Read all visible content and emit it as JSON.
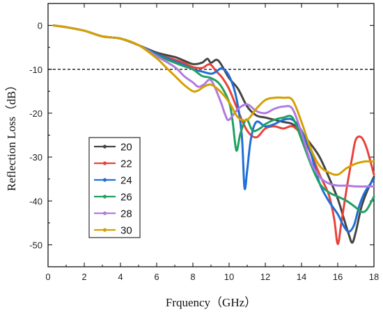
{
  "chart_data": {
    "type": "line",
    "xlabel": "Frquency（GHz）",
    "ylabel": "Reflection Loss（dB）",
    "xlim": [
      0,
      18
    ],
    "ylim": [
      -55,
      5
    ],
    "xticks": [
      "0",
      "2",
      "4",
      "6",
      "8",
      "10",
      "12",
      "14",
      "16",
      "18"
    ],
    "yticks": [
      "0",
      "-10",
      "-20",
      "-30",
      "-40",
      "-50"
    ],
    "reference_line": {
      "y": -10,
      "style": "dashed",
      "color": "#000000"
    },
    "grid": false,
    "legend_position": "left-middle",
    "series": [
      {
        "name": "20",
        "color": "#444444",
        "marker": "square",
        "x": [
          0.3,
          1.0,
          2.0,
          3.0,
          4.0,
          5.0,
          6.0,
          7.0,
          7.5,
          8.0,
          8.5,
          8.8,
          9.0,
          9.4,
          10.0,
          10.5,
          11.0,
          11.5,
          12.0,
          12.5,
          13.0,
          13.5,
          14.0,
          14.5,
          15.0,
          15.5,
          16.0,
          16.3,
          16.6,
          16.8,
          17.0,
          17.3,
          17.6,
          18.0
        ],
        "y": [
          0,
          -0.4,
          -1.2,
          -2.5,
          -3.0,
          -4.5,
          -6.2,
          -7.2,
          -8.0,
          -8.8,
          -8.5,
          -7.6,
          -8.5,
          -8.0,
          -12.0,
          -14.5,
          -18.5,
          -20.5,
          -21.0,
          -21.5,
          -22.0,
          -22.5,
          -24.5,
          -27.0,
          -30.0,
          -34.5,
          -39.5,
          -43.5,
          -47.5,
          -49.5,
          -47.0,
          -41.5,
          -38.0,
          -34.5
        ]
      },
      {
        "name": "22",
        "color": "#e8423b",
        "marker": "circle",
        "x": [
          0.3,
          1.0,
          2.0,
          3.0,
          4.0,
          5.0,
          6.0,
          7.0,
          7.5,
          8.0,
          8.5,
          8.8,
          9.0,
          9.3,
          9.6,
          10.0,
          10.5,
          11.0,
          11.5,
          12.0,
          12.5,
          13.0,
          13.5,
          14.0,
          14.5,
          15.0,
          15.5,
          15.8,
          16.0,
          16.2,
          16.5,
          16.8,
          17.0,
          17.3,
          17.6,
          18.0
        ],
        "y": [
          0,
          -0.4,
          -1.2,
          -2.5,
          -3.0,
          -4.5,
          -6.5,
          -7.8,
          -8.5,
          -9.5,
          -9.7,
          -9.0,
          -9.0,
          -10.5,
          -11.8,
          -14.5,
          -19.5,
          -24.0,
          -25.5,
          -23.5,
          -23.0,
          -23.5,
          -23.0,
          -25.0,
          -29.0,
          -34.0,
          -38.5,
          -44.0,
          -49.8,
          -45.0,
          -37.0,
          -30.0,
          -26.0,
          -25.5,
          -28.0,
          -34.0
        ]
      },
      {
        "name": "24",
        "color": "#1f6fd6",
        "marker": "triangle-up",
        "x": [
          0.3,
          1.0,
          2.0,
          3.0,
          4.0,
          5.0,
          6.0,
          7.0,
          7.5,
          8.0,
          8.5,
          9.0,
          9.3,
          9.6,
          10.0,
          10.4,
          10.7,
          10.85,
          11.0,
          11.2,
          11.5,
          12.0,
          12.5,
          13.0,
          13.5,
          14.0,
          14.5,
          15.0,
          15.5,
          16.0,
          16.3,
          16.6,
          16.9,
          17.2,
          17.5,
          18.0
        ],
        "y": [
          0,
          -0.4,
          -1.2,
          -2.5,
          -3.0,
          -4.5,
          -6.5,
          -8.2,
          -9.0,
          -10.0,
          -10.5,
          -11.0,
          -10.5,
          -9.8,
          -11.5,
          -16.5,
          -25.0,
          -37.0,
          -33.0,
          -26.0,
          -22.0,
          -23.0,
          -22.5,
          -21.5,
          -21.5,
          -24.0,
          -29.0,
          -36.0,
          -40.0,
          -43.0,
          -45.5,
          -47.0,
          -45.5,
          -41.0,
          -38.0,
          -35.0
        ]
      },
      {
        "name": "26",
        "color": "#20a060",
        "marker": "triangle-down",
        "x": [
          0.3,
          1.0,
          2.0,
          3.0,
          4.0,
          5.0,
          6.0,
          7.0,
          7.5,
          8.0,
          8.5,
          9.0,
          9.5,
          10.0,
          10.2,
          10.4,
          10.6,
          10.8,
          11.0,
          11.3,
          11.7,
          12.0,
          12.5,
          13.0,
          13.5,
          14.0,
          14.5,
          15.0,
          15.5,
          16.0,
          16.5,
          17.0,
          17.3,
          17.6,
          18.0
        ],
        "y": [
          0,
          -0.4,
          -1.2,
          -2.5,
          -3.0,
          -4.5,
          -6.8,
          -8.5,
          -9.3,
          -10.0,
          -11.5,
          -12.0,
          -13.5,
          -17.5,
          -22.0,
          -28.5,
          -25.0,
          -22.5,
          -21.5,
          -24.0,
          -23.5,
          -22.5,
          -21.5,
          -21.0,
          -21.0,
          -26.0,
          -31.5,
          -36.0,
          -38.0,
          -39.0,
          -40.0,
          -41.5,
          -42.5,
          -42.0,
          -39.0
        ]
      },
      {
        "name": "28",
        "color": "#b07ae0",
        "marker": "diamond",
        "x": [
          0.3,
          1.0,
          2.0,
          3.0,
          4.0,
          5.0,
          6.0,
          7.0,
          7.5,
          8.0,
          8.3,
          8.6,
          9.0,
          9.5,
          9.8,
          10.0,
          10.5,
          11.0,
          11.5,
          12.0,
          12.5,
          13.0,
          13.5,
          14.0,
          14.5,
          15.0,
          15.5,
          16.0,
          16.5,
          17.0,
          18.0
        ],
        "y": [
          0,
          -0.4,
          -1.2,
          -2.5,
          -3.0,
          -4.5,
          -7.0,
          -9.5,
          -11.5,
          -13.0,
          -14.0,
          -13.5,
          -12.5,
          -17.0,
          -20.5,
          -21.5,
          -19.0,
          -18.0,
          -19.5,
          -20.0,
          -19.0,
          -18.5,
          -19.0,
          -24.5,
          -31.0,
          -34.5,
          -36.0,
          -36.5,
          -36.5,
          -36.7,
          -36.7
        ]
      },
      {
        "name": "30",
        "color": "#d4a000",
        "marker": "star",
        "x": [
          0.3,
          1.0,
          2.0,
          3.0,
          4.0,
          5.0,
          6.0,
          6.5,
          7.0,
          7.5,
          8.0,
          8.3,
          8.6,
          9.0,
          9.5,
          10.0,
          10.5,
          11.0,
          11.5,
          12.0,
          12.5,
          13.0,
          13.5,
          14.0,
          14.5,
          15.0,
          15.5,
          16.0,
          16.5,
          17.0,
          17.5,
          18.0
        ],
        "y": [
          0,
          -0.4,
          -1.2,
          -2.5,
          -3.0,
          -4.5,
          -7.5,
          -9.5,
          -11.5,
          -13.5,
          -15.0,
          -14.8,
          -14.0,
          -13.5,
          -15.0,
          -17.5,
          -21.0,
          -21.5,
          -19.0,
          -17.0,
          -16.5,
          -16.5,
          -17.0,
          -22.0,
          -28.0,
          -32.0,
          -33.5,
          -34.0,
          -32.5,
          -31.5,
          -31.0,
          -31.0
        ]
      }
    ]
  }
}
